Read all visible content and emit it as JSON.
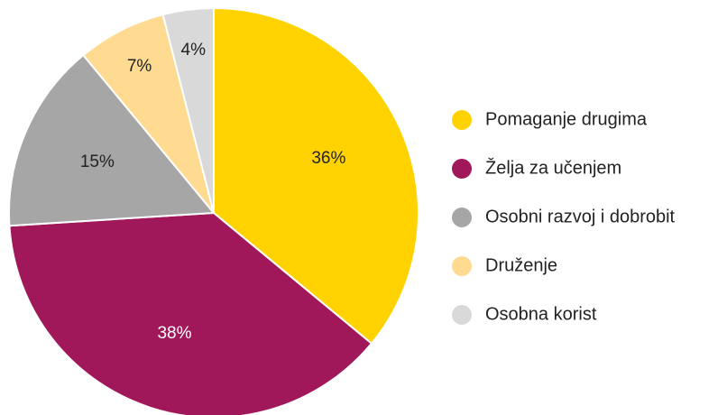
{
  "chart_data": {
    "type": "pie",
    "categories": [
      "Pomaganje drugima",
      "Želja za učenjem",
      "Osobni razvoj i dobrobit",
      "Druženje",
      "Osobna korist"
    ],
    "values": [
      36,
      38,
      15,
      7,
      4
    ],
    "value_labels": [
      "36%",
      "38%",
      "15%",
      "7%",
      "4%"
    ],
    "colors": [
      "#ffd200",
      "#a1185a",
      "#a6a6a6",
      "#fedb91",
      "#d9d9d9"
    ],
    "legend": "right"
  }
}
